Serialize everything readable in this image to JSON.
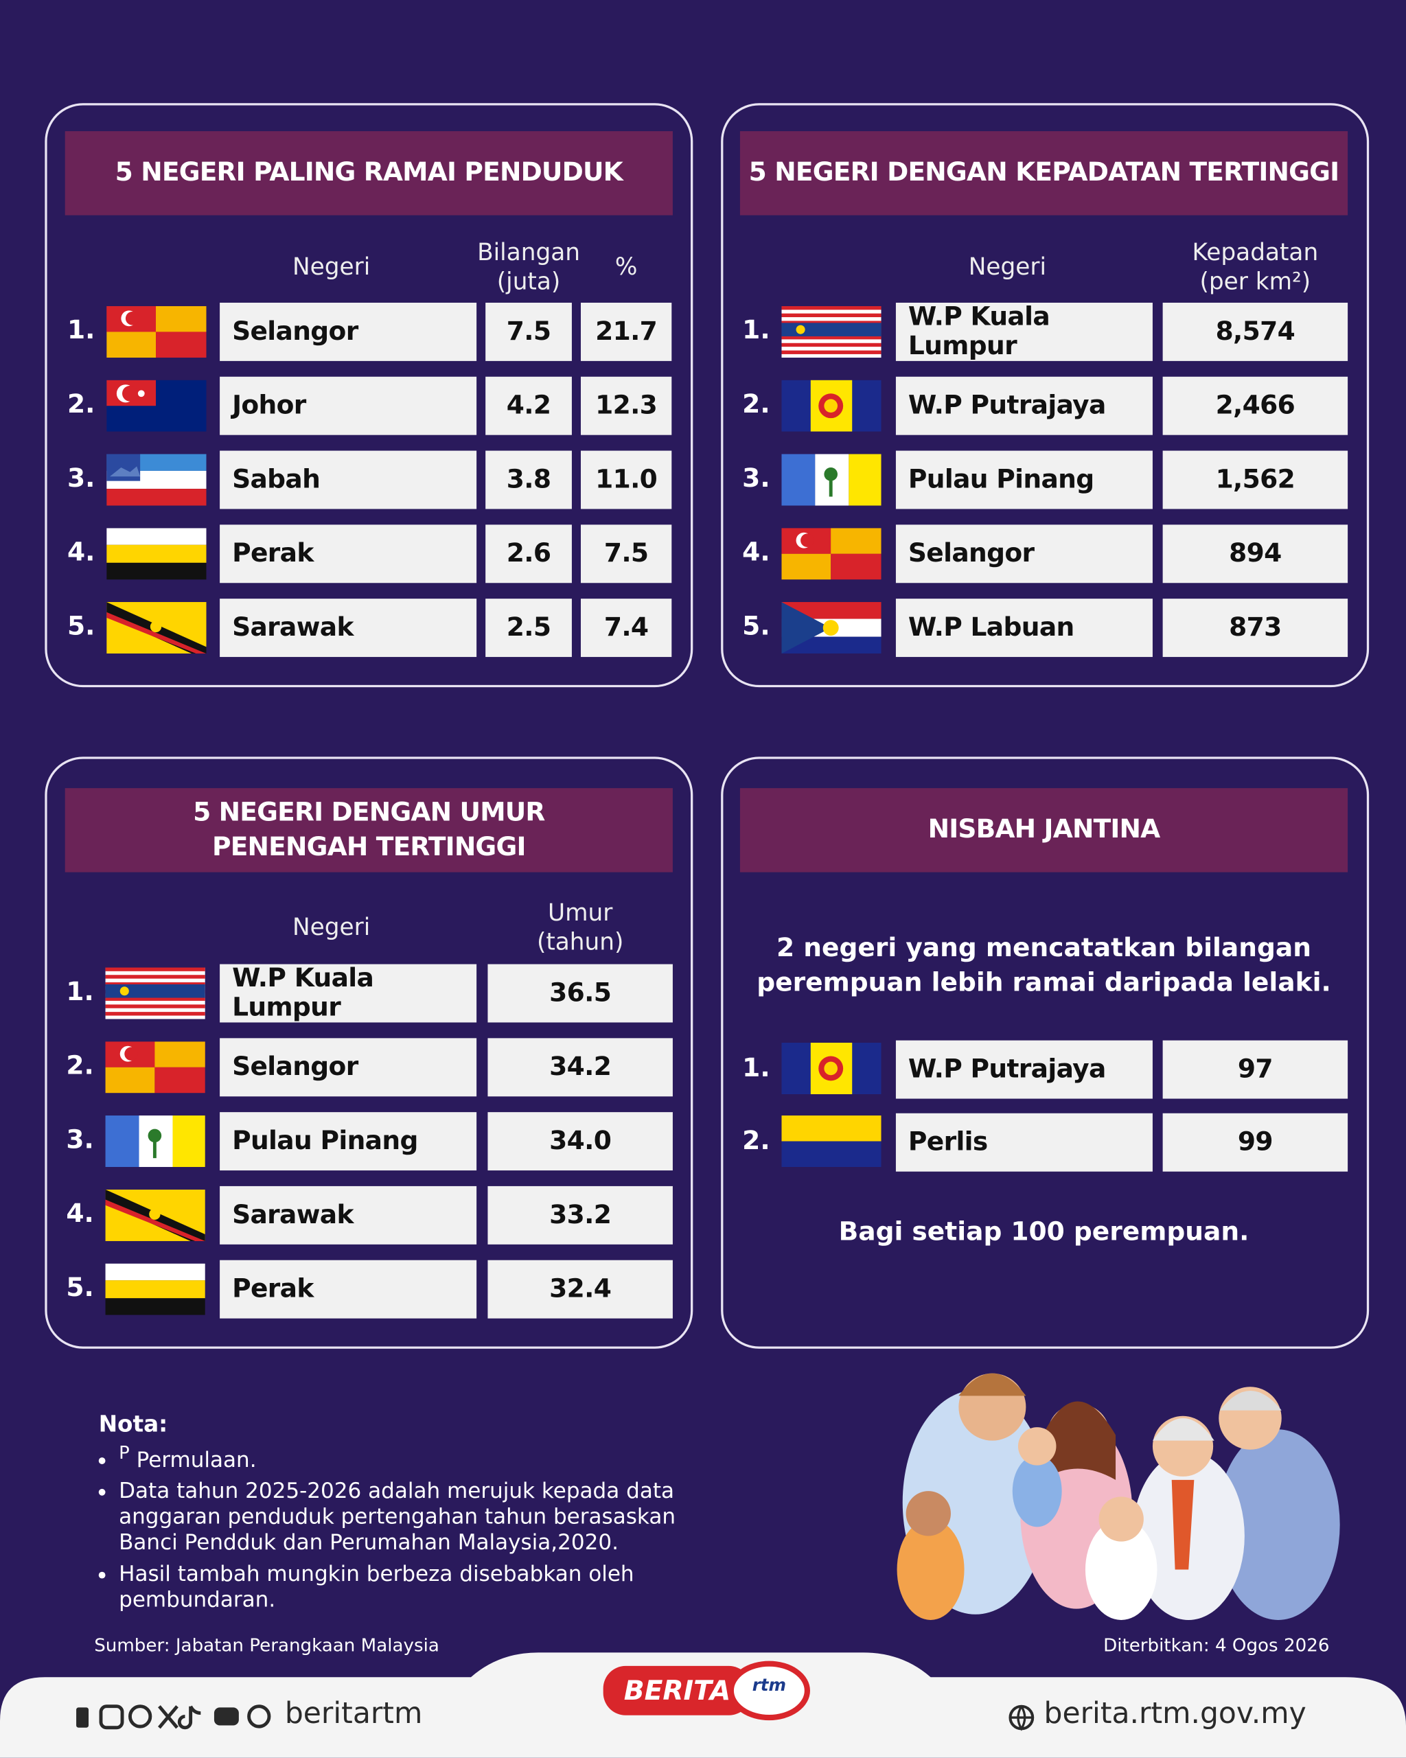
{
  "panels": [
    {
      "title": [
        "5 NEGERI PALING RAMAI PENDUDUK"
      ],
      "columns": [
        [
          "Negeri"
        ],
        [
          "Bilangan",
          "(juta)"
        ],
        [
          "%"
        ]
      ],
      "rows": [
        {
          "rank": "1.",
          "state": "Selangor",
          "values": [
            "7.5",
            "21.7"
          ]
        },
        {
          "rank": "2.",
          "state": "Johor",
          "values": [
            "4.2",
            "12.3"
          ]
        },
        {
          "rank": "3.",
          "state": "Sabah",
          "values": [
            "3.8",
            "11.0"
          ]
        },
        {
          "rank": "4.",
          "state": "Perak",
          "values": [
            "2.6",
            "7.5"
          ]
        },
        {
          "rank": "5.",
          "state": "Sarawak",
          "values": [
            "2.5",
            "7.4"
          ]
        }
      ]
    },
    {
      "title": [
        "5 NEGERI DENGAN KEPADATAN TERTINGGI"
      ],
      "columns": [
        [
          "Negeri"
        ],
        [
          "Kepadatan",
          "(per km²)"
        ]
      ],
      "rows": [
        {
          "rank": "1.",
          "state": "W.P Kuala Lumpur",
          "values": [
            "8,574"
          ]
        },
        {
          "rank": "2.",
          "state": "W.P Putrajaya",
          "values": [
            "2,466"
          ]
        },
        {
          "rank": "3.",
          "state": "Pulau Pinang",
          "values": [
            "1,562"
          ]
        },
        {
          "rank": "4.",
          "state": "Selangor",
          "values": [
            "894"
          ]
        },
        {
          "rank": "5.",
          "state": "W.P Labuan",
          "values": [
            "873"
          ]
        }
      ]
    },
    {
      "title": [
        "5 NEGERI DENGAN UMUR",
        "PENENGAH TERTINGGI"
      ],
      "columns": [
        [
          "Negeri"
        ],
        [
          "Umur",
          "(tahun)"
        ]
      ],
      "rows": [
        {
          "rank": "1.",
          "state": "W.P Kuala Lumpur",
          "values": [
            "36.5"
          ]
        },
        {
          "rank": "2.",
          "state": "Selangor",
          "values": [
            "34.2"
          ]
        },
        {
          "rank": "3.",
          "state": "Pulau Pinang",
          "values": [
            "34.0"
          ]
        },
        {
          "rank": "4.",
          "state": "Sarawak",
          "values": [
            "33.2"
          ]
        },
        {
          "rank": "5.",
          "state": "Perak",
          "values": [
            "32.4"
          ]
        }
      ]
    }
  ],
  "sex_ratio": {
    "title": "NISBAH JANTINA",
    "intro": [
      "2 negeri yang mencatatkan bilangan",
      "perempuan lebih ramai daripada lelaki."
    ],
    "rows": [
      {
        "rank": "1.",
        "state": "W.P Putrajaya",
        "value": "97"
      },
      {
        "rank": "2.",
        "state": "Perlis",
        "value": "99"
      }
    ],
    "footnote": "Bagi setiap 100 perempuan."
  },
  "notes": {
    "title": "Nota:",
    "items": [
      {
        "sup": "P",
        "text": "Permulaan."
      },
      {
        "text": "Data tahun 2025-2026 adalah merujuk kepada data anggaran penduduk pertengahan tahun berasaskan Banci Pendduk dan Perumahan Malaysia,2020."
      },
      {
        "text": "Hasil tambah mungkin berbeza disebabkan oleh pembundaran."
      }
    ]
  },
  "source": "Sumber: Jabatan Perangkaan Malaysia",
  "published": "Diterbitkan: 4 Ogos 2026",
  "logo": "BERITA",
  "logo_mark": "rtm",
  "social": "beritartm",
  "website": "berita.rtm.gov.my"
}
